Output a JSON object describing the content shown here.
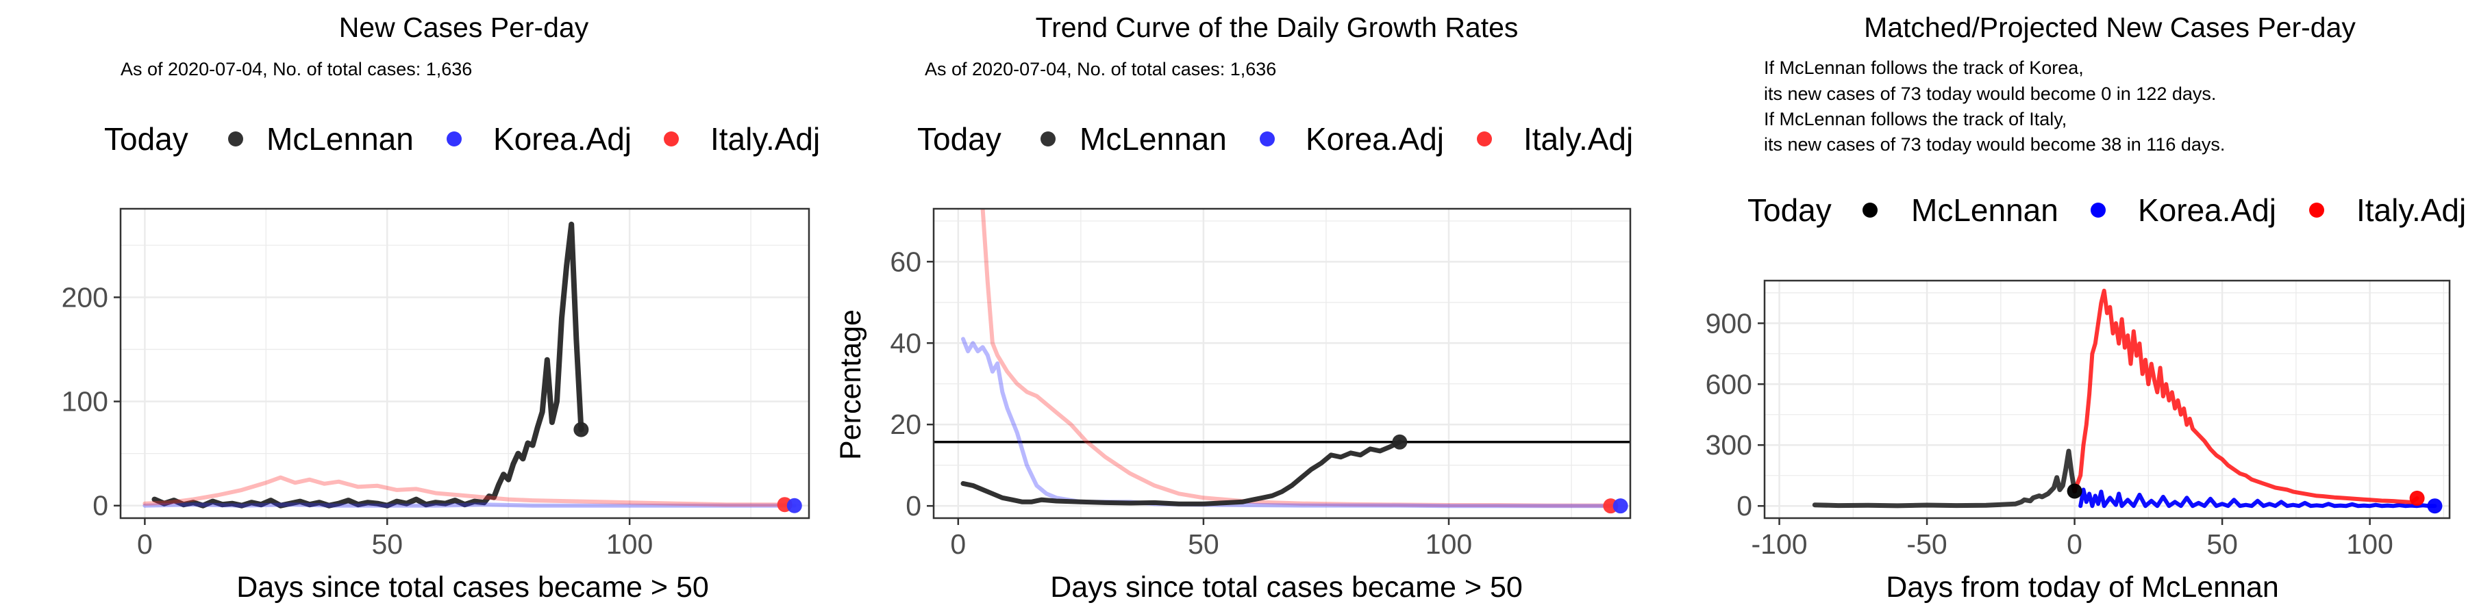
{
  "legend": {
    "title": "Today",
    "items": [
      {
        "label": "McLennan",
        "color": "#333333"
      },
      {
        "label": "Korea.Adj",
        "color": "#3333ff"
      },
      {
        "label": "Italy.Adj",
        "color": "#ff3333"
      }
    ]
  },
  "legend_p3": {
    "title": "Today",
    "items": [
      {
        "label": "McLennan",
        "color": "#000000"
      },
      {
        "label": "Korea.Adj",
        "color": "#0000ff"
      },
      {
        "label": "Italy.Adj",
        "color": "#ff0000"
      }
    ]
  },
  "chart_data": [
    {
      "type": "line",
      "title": "New Cases Per-day",
      "subtitle": "As of 2020-07-04, No. of total cases: 1,636",
      "xlabel": "Days since total cases became > 50",
      "ylabel": "",
      "xlim": [
        -5,
        137
      ],
      "ylim": [
        -12,
        285
      ],
      "xticks": [
        0,
        50,
        100
      ],
      "yticks": [
        0,
        100,
        200
      ],
      "series": [
        {
          "name": "McLennan",
          "color": "#262626",
          "width": 8,
          "opacity": 0.95,
          "x": [
            2,
            4,
            6,
            8,
            10,
            12,
            14,
            16,
            18,
            20,
            22,
            24,
            26,
            28,
            30,
            32,
            34,
            36,
            38,
            40,
            42,
            44,
            46,
            48,
            50,
            52,
            54,
            56,
            58,
            60,
            62,
            64,
            66,
            68,
            70,
            71,
            72,
            73,
            74,
            75,
            76,
            77,
            78,
            79,
            80,
            81,
            82,
            83,
            84,
            85,
            86,
            87,
            88,
            89,
            90
          ],
          "y": [
            6,
            2,
            5,
            1,
            3,
            0,
            4,
            1,
            2,
            0,
            3,
            1,
            5,
            0,
            2,
            4,
            1,
            3,
            0,
            2,
            5,
            1,
            3,
            2,
            0,
            4,
            2,
            6,
            1,
            3,
            2,
            5,
            1,
            4,
            3,
            9,
            8,
            20,
            30,
            25,
            40,
            50,
            45,
            60,
            58,
            75,
            90,
            140,
            80,
            100,
            180,
            230,
            270,
            160,
            73
          ]
        },
        {
          "name": "Korea.Adj",
          "color": "#3333ff",
          "width": 6,
          "opacity": 0.35,
          "x": [
            0,
            10,
            20,
            30,
            40,
            50,
            60,
            70,
            80,
            90,
            100,
            110,
            120,
            130,
            134
          ],
          "y": [
            0,
            1,
            0,
            1,
            0,
            0,
            0,
            1,
            0,
            0,
            0,
            0,
            0,
            0,
            0
          ]
        },
        {
          "name": "Italy.Adj",
          "color": "#ff3333",
          "width": 6,
          "opacity": 0.35,
          "x": [
            0,
            5,
            10,
            15,
            20,
            25,
            28,
            31,
            34,
            37,
            40,
            44,
            48,
            52,
            56,
            60,
            65,
            70,
            75,
            80,
            90,
            100,
            110,
            120,
            133
          ],
          "y": [
            2,
            3,
            6,
            10,
            15,
            22,
            27,
            22,
            25,
            21,
            23,
            18,
            19,
            15,
            16,
            12,
            10,
            8,
            6,
            5,
            4,
            3,
            2,
            1,
            1
          ]
        }
      ],
      "today_points": [
        {
          "name": "McLennan",
          "x": 90,
          "y": 73,
          "color": "#262626"
        },
        {
          "name": "Italy.Adj",
          "x": 132,
          "y": 1,
          "color": "#ff3333"
        },
        {
          "name": "Korea.Adj",
          "x": 134,
          "y": 0,
          "color": "#3333ff"
        }
      ]
    },
    {
      "type": "line",
      "title": "Trend Curve of the Daily Growth Rates",
      "subtitle": "As of 2020-07-04, No. of total cases: 1,636",
      "xlabel": "Days since total cases became > 50",
      "ylabel": "Percentage",
      "xlim": [
        -5,
        137
      ],
      "ylim": [
        -3,
        73
      ],
      "xticks": [
        0,
        50,
        100
      ],
      "yticks": [
        0,
        20,
        40,
        60
      ],
      "hline": 15.7,
      "series": [
        {
          "name": "Italy.Adj",
          "color": "#ff3333",
          "width": 6,
          "opacity": 0.35,
          "x": [
            5,
            6,
            7,
            8,
            10,
            12,
            14,
            16,
            18,
            20,
            23,
            26,
            30,
            35,
            40,
            45,
            50,
            55,
            60,
            70,
            80,
            90,
            100,
            110,
            120,
            133
          ],
          "y": [
            73,
            55,
            40,
            37,
            33,
            30,
            28,
            27,
            25,
            23,
            20,
            16,
            12,
            8,
            5,
            3,
            2,
            1.5,
            1,
            0.6,
            0.4,
            0.3,
            0.2,
            0.2,
            0.1,
            0.1
          ]
        },
        {
          "name": "Korea.Adj",
          "color": "#3333ff",
          "width": 6,
          "opacity": 0.35,
          "x": [
            1,
            2,
            3,
            4,
            5,
            6,
            7,
            8,
            9,
            10,
            12,
            14,
            16,
            18,
            20,
            25,
            30,
            35,
            40,
            50,
            60,
            70,
            80,
            90,
            100,
            110,
            120,
            134
          ],
          "y": [
            41,
            38,
            40,
            38,
            39,
            37,
            33,
            35,
            28,
            24,
            18,
            10,
            5,
            3,
            2,
            1,
            1,
            1,
            0.5,
            0.3,
            0.2,
            0.1,
            0.1,
            0.1,
            0,
            0,
            0,
            0
          ]
        },
        {
          "name": "McLennan",
          "color": "#262626",
          "width": 7,
          "opacity": 0.95,
          "x": [
            1,
            3,
            5,
            7,
            9,
            11,
            13,
            15,
            17,
            20,
            25,
            30,
            35,
            40,
            45,
            50,
            55,
            58,
            60,
            62,
            64,
            66,
            68,
            70,
            72,
            74,
            76,
            78,
            80,
            82,
            84,
            86,
            88,
            90
          ],
          "y": [
            5.5,
            5,
            4,
            3,
            2,
            1.5,
            1,
            1,
            1.5,
            1.2,
            1,
            0.8,
            0.7,
            0.8,
            0.5,
            0.5,
            0.8,
            1,
            1.5,
            2,
            2.5,
            3.5,
            5,
            7,
            9,
            10.5,
            12.5,
            12,
            13,
            12.5,
            14,
            13.5,
            14.5,
            15.7
          ]
        }
      ],
      "today_points": [
        {
          "name": "McLennan",
          "x": 90,
          "y": 15.7,
          "color": "#262626"
        },
        {
          "name": "Italy.Adj",
          "x": 133,
          "y": 0,
          "color": "#ff3333"
        },
        {
          "name": "Korea.Adj",
          "x": 135,
          "y": 0,
          "color": "#3333ff"
        }
      ]
    },
    {
      "type": "line",
      "title": "Matched/Projected New Cases Per-day",
      "annotations": [
        "If McLennan follows the track of Korea,",
        "its new cases of 73 today would become 0 in 122 days.",
        "If McLennan follows the track of Italy,",
        "its new cases of 73 today would become 38 in 116 days."
      ],
      "xlabel": "Days from today of McLennan",
      "ylabel": "",
      "xlim": [
        -105,
        127
      ],
      "ylim": [
        -60,
        1110
      ],
      "xticks": [
        -100,
        -50,
        0,
        50,
        100
      ],
      "yticks": [
        0,
        300,
        600,
        900
      ],
      "series": [
        {
          "name": "McLennan",
          "color": "#1a1a1a",
          "width": 7,
          "opacity": 0.85,
          "x": [
            -88,
            -80,
            -70,
            -60,
            -50,
            -40,
            -30,
            -20,
            -18,
            -17,
            -15,
            -14,
            -12,
            -11,
            -9,
            -8,
            -7,
            -6,
            -5,
            -4,
            -3,
            -2,
            -1,
            0
          ],
          "y": [
            5,
            2,
            3,
            1,
            4,
            2,
            3,
            10,
            20,
            30,
            25,
            40,
            50,
            45,
            60,
            75,
            90,
            140,
            80,
            100,
            180,
            270,
            160,
            73
          ]
        },
        {
          "name": "Korea.Adj",
          "color": "#0000ff",
          "width": 6,
          "opacity": 0.95,
          "x": [
            2,
            3,
            4,
            5,
            6,
            7,
            8,
            9,
            10,
            12,
            14,
            15,
            16,
            18,
            20,
            22,
            24,
            26,
            28,
            30,
            32,
            34,
            36,
            38,
            40,
            42,
            44,
            46,
            48,
            50,
            52,
            54,
            56,
            58,
            60,
            62,
            64,
            66,
            68,
            70,
            72,
            74,
            76,
            78,
            80,
            82,
            84,
            86,
            88,
            90,
            92,
            94,
            96,
            98,
            100,
            102,
            104,
            106,
            108,
            110,
            112,
            114,
            116,
            118,
            120,
            122
          ],
          "y": [
            0,
            80,
            20,
            60,
            0,
            50,
            10,
            70,
            0,
            40,
            5,
            60,
            0,
            30,
            0,
            55,
            0,
            25,
            0,
            45,
            0,
            20,
            0,
            40,
            0,
            15,
            0,
            35,
            0,
            10,
            0,
            30,
            0,
            5,
            0,
            25,
            0,
            10,
            0,
            20,
            0,
            5,
            0,
            15,
            0,
            3,
            0,
            10,
            0,
            2,
            0,
            8,
            0,
            2,
            0,
            5,
            0,
            2,
            0,
            4,
            0,
            2,
            0,
            3,
            0,
            0
          ]
        },
        {
          "name": "Italy.Adj",
          "color": "#ff0000",
          "width": 6,
          "opacity": 0.8,
          "x": [
            0,
            2,
            3,
            4,
            5,
            6,
            7,
            8,
            9,
            10,
            11,
            12,
            13,
            14,
            15,
            16,
            17,
            18,
            19,
            20,
            21,
            22,
            23,
            24,
            25,
            26,
            27,
            28,
            29,
            30,
            31,
            32,
            33,
            34,
            35,
            36,
            37,
            38,
            39,
            40,
            42,
            44,
            46,
            48,
            50,
            52,
            54,
            56,
            58,
            60,
            62,
            64,
            66,
            68,
            70,
            72,
            74,
            76,
            78,
            80,
            82,
            84,
            86,
            88,
            90,
            92,
            94,
            96,
            98,
            100,
            102,
            104,
            106,
            108,
            110,
            112,
            114,
            116
          ],
          "y": [
            73,
            150,
            300,
            400,
            550,
            750,
            800,
            900,
            1000,
            1060,
            950,
            980,
            850,
            900,
            800,
            920,
            780,
            840,
            700,
            860,
            740,
            800,
            650,
            720,
            600,
            700,
            620,
            560,
            680,
            540,
            600,
            520,
            560,
            480,
            520,
            450,
            480,
            400,
            430,
            380,
            350,
            320,
            280,
            250,
            230,
            200,
            180,
            160,
            150,
            130,
            120,
            110,
            100,
            90,
            85,
            80,
            70,
            65,
            60,
            55,
            50,
            48,
            45,
            42,
            40,
            38,
            36,
            34,
            32,
            30,
            28,
            26,
            25,
            24,
            22,
            20,
            18,
            38
          ]
        }
      ],
      "today_points": [
        {
          "name": "McLennan",
          "x": 0,
          "y": 73,
          "color": "#000000"
        },
        {
          "name": "Italy.Adj",
          "x": 116,
          "y": 38,
          "color": "#ff0000"
        },
        {
          "name": "Korea.Adj",
          "x": 122,
          "y": 0,
          "color": "#0000ff"
        }
      ]
    }
  ]
}
